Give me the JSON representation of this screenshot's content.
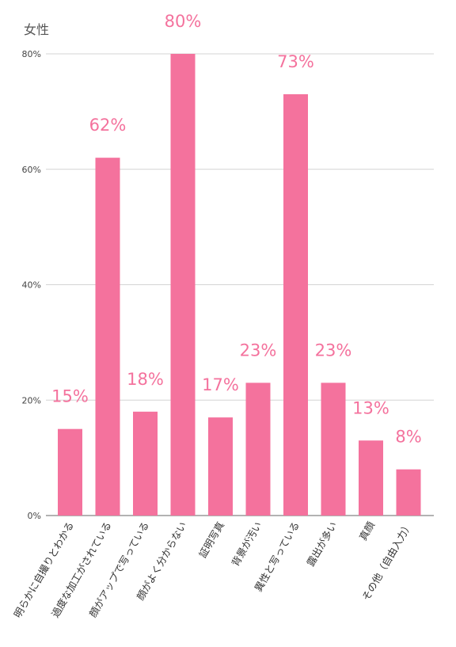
{
  "chart_data": {
    "type": "bar",
    "title": "女性",
    "categories": [
      "明らかに自撮りとわかる",
      "過度な加工がされている",
      "顔がアップで写っている",
      "顔がよく分からない",
      "証明写真",
      "背景が汚い",
      "異性と写っている",
      "露出が多い",
      "真顔",
      "その他（自由入力）"
    ],
    "values": [
      15,
      62,
      18,
      80,
      17,
      23,
      73,
      23,
      13,
      8
    ],
    "value_labels": [
      "15%",
      "62%",
      "18%",
      "80%",
      "17%",
      "23%",
      "73%",
      "23%",
      "13%",
      "8%"
    ],
    "ylim": [
      0,
      80
    ],
    "yticks": [
      0,
      20,
      40,
      60,
      80
    ],
    "ytick_labels": [
      "0%",
      "20%",
      "40%",
      "60%",
      "80%"
    ],
    "grid": true,
    "bar_color": "#f4729d",
    "label_color": "#f4729d",
    "xlabel": "",
    "ylabel": ""
  }
}
